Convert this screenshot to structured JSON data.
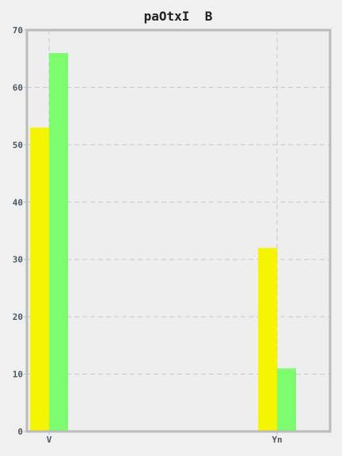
{
  "chart_data": {
    "type": "bar",
    "title": "paOtxI  B",
    "xlabel": "",
    "ylabel": "",
    "categories": [
      "V",
      "Yn"
    ],
    "series": [
      {
        "values": [
          53,
          32
        ],
        "color": "#f5f500"
      },
      {
        "values": [
          66,
          11
        ],
        "color": "#7dfc6e"
      }
    ],
    "ylim": [
      0,
      70
    ],
    "yticks": [
      0,
      10,
      20,
      30,
      40,
      50,
      60,
      70
    ],
    "grid": true,
    "background": "#eeeeee",
    "frame_color": "#bbbbbb"
  }
}
